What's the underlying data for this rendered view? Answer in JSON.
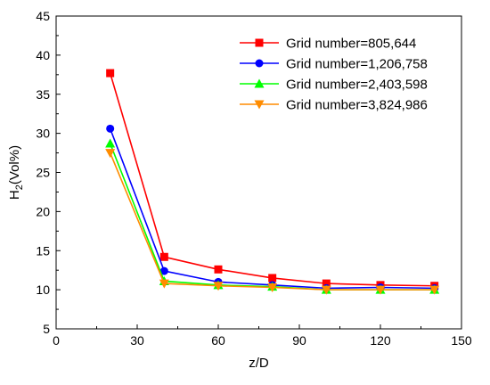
{
  "chart_data": {
    "type": "line",
    "xlabel": "z/D",
    "ylabel": {
      "main": "H",
      "subscript": "2",
      "suffix": "(Vol%)"
    },
    "xlim": [
      0,
      150
    ],
    "ylim": [
      5,
      45
    ],
    "xticks": [
      0,
      30,
      60,
      90,
      120,
      150
    ],
    "yticks": [
      5,
      10,
      15,
      20,
      25,
      30,
      35,
      40,
      45
    ],
    "grid": false,
    "legend_position": "top-right",
    "x": [
      20,
      40,
      60,
      80,
      100,
      120,
      140
    ],
    "series": [
      {
        "name": "Grid number=805,644",
        "color": "#ff0000",
        "marker": "square",
        "values": [
          37.7,
          14.2,
          12.6,
          11.5,
          10.8,
          10.6,
          10.5
        ]
      },
      {
        "name": "Grid number=1,206,758",
        "color": "#0000ff",
        "marker": "circle",
        "values": [
          30.6,
          12.4,
          11.0,
          10.6,
          10.2,
          10.3,
          10.2
        ]
      },
      {
        "name": "Grid number=2,403,598",
        "color": "#00ff00",
        "marker": "triangle-up",
        "values": [
          28.7,
          11.1,
          10.6,
          10.4,
          10.0,
          10.0,
          10.0
        ]
      },
      {
        "name": "Grid number=3,824,986",
        "color": "#ff8c00",
        "marker": "triangle-down",
        "values": [
          27.5,
          10.8,
          10.5,
          10.3,
          10.0,
          10.0,
          10.0
        ]
      }
    ]
  }
}
